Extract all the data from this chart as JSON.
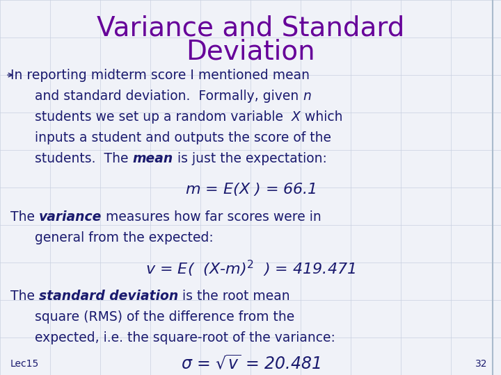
{
  "title_line1": "Variance and Standard",
  "title_line2": "Deviation",
  "title_color": "#660099",
  "body_color": "#1a1a6e",
  "background_color": "#f0f2f8",
  "grid_color": "#c8d0e0",
  "lec_label": "Lec15",
  "page_num": "32",
  "title_fontsize": 28,
  "body_fontsize": 13.5,
  "formula_fontsize": 15,
  "small_fontsize": 10
}
